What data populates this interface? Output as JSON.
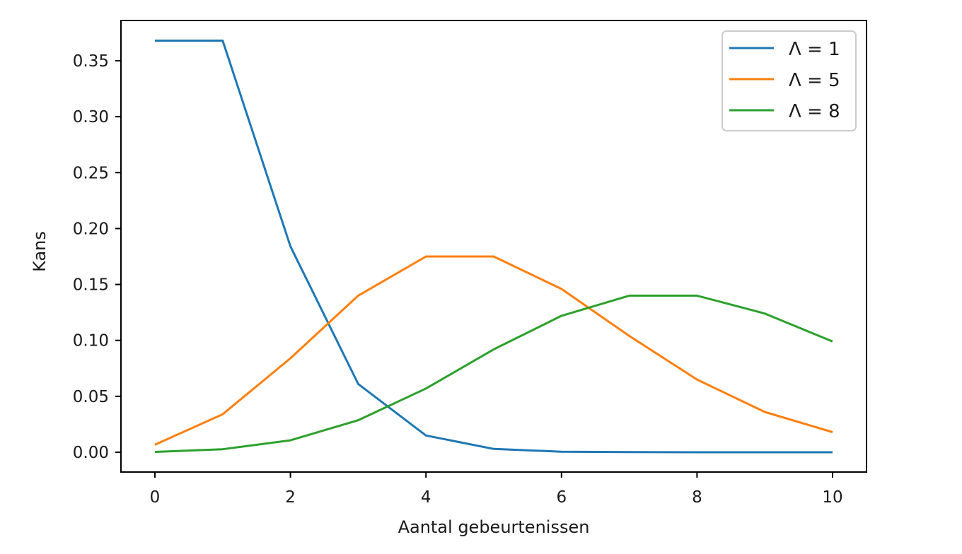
{
  "chart_data": {
    "type": "line",
    "title": "",
    "xlabel": "Aantal gebeurtenissen",
    "ylabel": "Kans",
    "x": [
      0,
      1,
      2,
      3,
      4,
      5,
      6,
      7,
      8,
      9,
      10
    ],
    "xticks": [
      0,
      2,
      4,
      6,
      8,
      10
    ],
    "xtick_labels": [
      "0",
      "2",
      "4",
      "6",
      "8",
      "10"
    ],
    "yticks": [
      0.0,
      0.05,
      0.1,
      0.15,
      0.2,
      0.25,
      0.3,
      0.35
    ],
    "ytick_labels": [
      "0.00",
      "0.05",
      "0.10",
      "0.15",
      "0.20",
      "0.25",
      "0.30",
      "0.35"
    ],
    "xlim": [
      -0.5,
      10.5
    ],
    "ylim": [
      -0.018,
      0.386
    ],
    "grid": false,
    "legend_position": "upper right",
    "series": [
      {
        "name": "Λ = 1",
        "color": "#1f77b4",
        "values": [
          0.368,
          0.368,
          0.184,
          0.061,
          0.015,
          0.003,
          0.0005,
          0.0001,
          0.0,
          0.0,
          0.0
        ]
      },
      {
        "name": "Λ = 5",
        "color": "#ff7f0e",
        "values": [
          0.0067,
          0.034,
          0.084,
          0.14,
          0.175,
          0.175,
          0.146,
          0.104,
          0.065,
          0.036,
          0.018
        ]
      },
      {
        "name": "Λ = 8",
        "color": "#2ca02c",
        "values": [
          0.0003,
          0.0027,
          0.0107,
          0.0286,
          0.057,
          0.092,
          0.122,
          0.14,
          0.14,
          0.124,
          0.099
        ]
      }
    ]
  },
  "legend": {
    "items": [
      {
        "label": "Λ = 1",
        "color": "#1f77b4"
      },
      {
        "label": "Λ = 5",
        "color": "#ff7f0e"
      },
      {
        "label": "Λ = 8",
        "color": "#2ca02c"
      }
    ]
  },
  "axes": {
    "xlabel": "Aantal gebeurtenissen",
    "ylabel": "Kans"
  }
}
